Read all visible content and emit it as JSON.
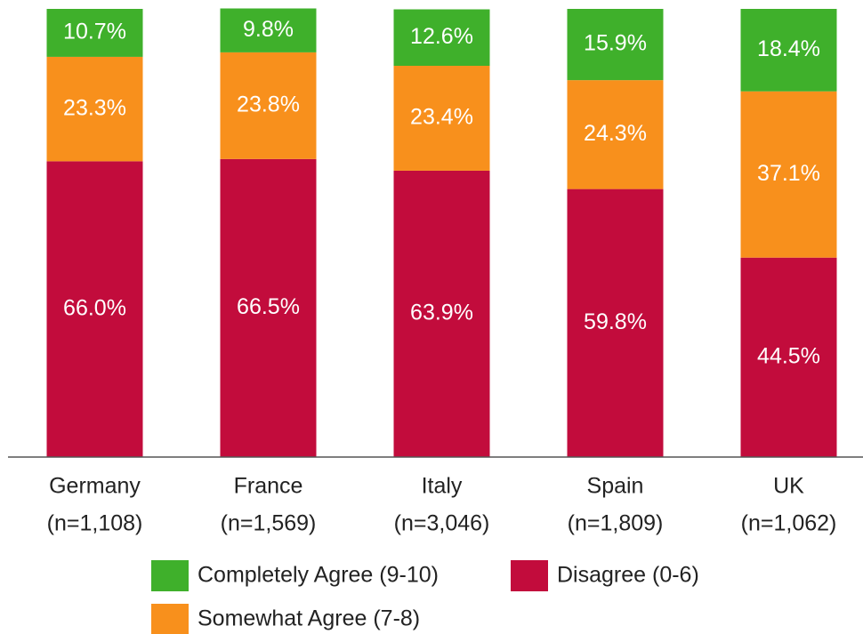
{
  "chart_data": {
    "type": "stacked_bar",
    "categories": [
      [
        "Germany",
        "(n=1,108)"
      ],
      [
        "France",
        "(n=1,569)"
      ],
      [
        "Italy",
        "(n=3,046)"
      ],
      [
        "Spain",
        "(n=1,809)"
      ],
      [
        "UK",
        "(n=1,062)"
      ]
    ],
    "ylim": [
      0,
      100
    ],
    "series": [
      {
        "name": "Disagree (0-6)",
        "color": "#c20c3c",
        "values": [
          66.0,
          66.5,
          63.9,
          59.8,
          44.5
        ],
        "value_labels": [
          "66.0%",
          "66.5%",
          "63.9%",
          "59.8%",
          "44.5%"
        ]
      },
      {
        "name": "Somewhat Agree (7-8)",
        "color": "#f8901c",
        "values": [
          23.3,
          23.8,
          23.4,
          24.3,
          37.1
        ],
        "value_labels": [
          "23.3%",
          "23.8%",
          "23.4%",
          "24.3%",
          "37.1%"
        ]
      },
      {
        "name": "Completely Agree (9-10)",
        "color": "#3fb02b",
        "values": [
          10.7,
          9.8,
          12.6,
          15.9,
          18.4
        ],
        "value_labels": [
          "10.7%",
          "9.8%",
          "12.6%",
          "15.9%",
          "18.4%"
        ]
      }
    ]
  }
}
